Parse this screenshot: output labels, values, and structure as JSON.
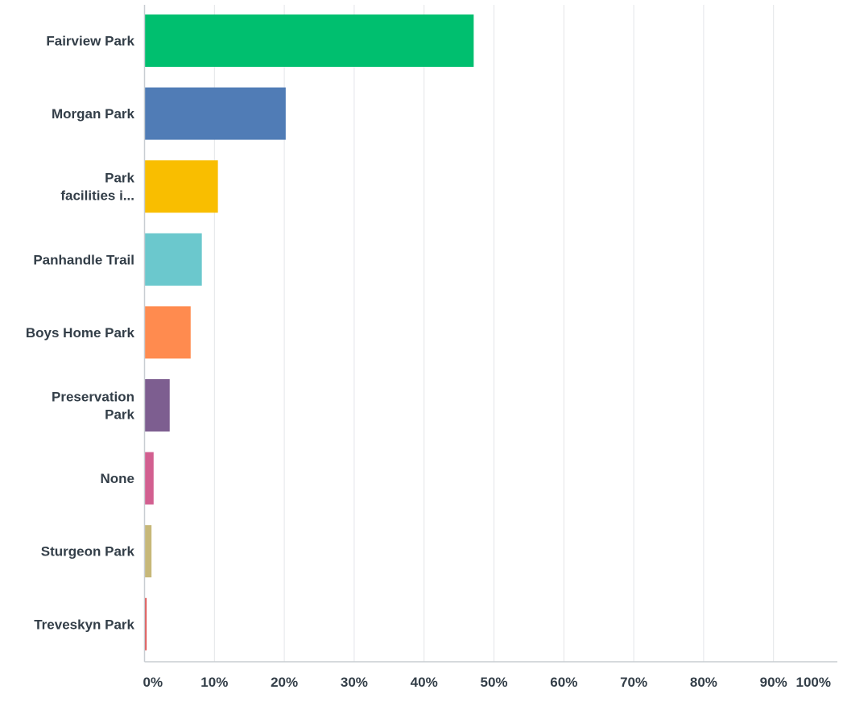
{
  "chart_data": {
    "type": "bar",
    "orientation": "horizontal",
    "categories": [
      "Fairview Park",
      "Morgan Park",
      "Park facilities i...",
      "Panhandle Trail",
      "Boys Home Park",
      "Preservation Park",
      "None",
      "Sturgeon Park",
      "Treveskyn Park"
    ],
    "category_label_lines": [
      [
        "Fairview Park"
      ],
      [
        "Morgan Park"
      ],
      [
        "Park",
        "facilities i..."
      ],
      [
        "Panhandle Trail"
      ],
      [
        "Boys Home Park"
      ],
      [
        "Preservation",
        "Park"
      ],
      [
        "None"
      ],
      [
        "Sturgeon Park"
      ],
      [
        "Treveskyn Park"
      ]
    ],
    "values": [
      47.1,
      20.2,
      10.5,
      8.2,
      6.6,
      3.6,
      1.3,
      1.0,
      0.3
    ],
    "colors": [
      "#00bf6f",
      "#507cb6",
      "#f9be00",
      "#6bc8cd",
      "#ff8b4f",
      "#7d5e90",
      "#d25f90",
      "#c7b879",
      "#e05353"
    ],
    "xlim": [
      0,
      100
    ],
    "xticks": [
      0,
      10,
      20,
      30,
      40,
      50,
      60,
      70,
      80,
      90,
      100
    ],
    "xtick_labels": [
      "0%",
      "10%",
      "20%",
      "30%",
      "40%",
      "50%",
      "60%",
      "70%",
      "80%",
      "90%",
      "100%"
    ],
    "grid": true,
    "title": "",
    "xlabel": "",
    "ylabel": ""
  }
}
